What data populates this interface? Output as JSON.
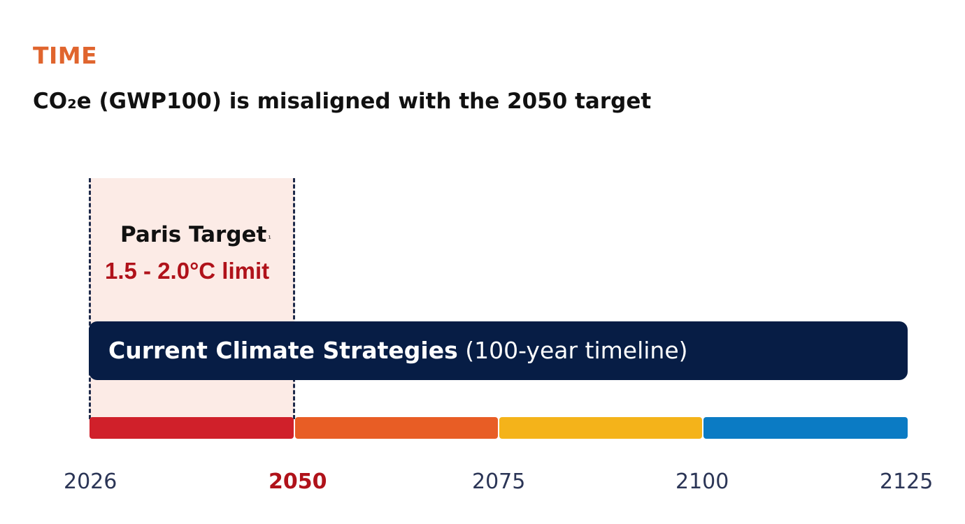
{
  "section_label": "TIME",
  "headline": "CO₂e (GWP100) is misaligned with the 2050 target",
  "paris": {
    "title": "Paris Target",
    "footnote_marker": "¹",
    "limit": "1.5 - 2.0°C limit"
  },
  "strategy_bar": {
    "bold_text": "Current Climate Strategies",
    "normal_text": " (100-year timeline)"
  },
  "timeline": {
    "ticks": [
      {
        "label": "2026",
        "highlight": false
      },
      {
        "label": "2050",
        "highlight": true
      },
      {
        "label": "2075",
        "highlight": false
      },
      {
        "label": "2100",
        "highlight": false
      },
      {
        "label": "2125",
        "highlight": false
      }
    ],
    "segments": [
      {
        "from": "2026",
        "to": "2050",
        "color": "#d0202a"
      },
      {
        "from": "2050",
        "to": "2075",
        "color": "#e85d25"
      },
      {
        "from": "2075",
        "to": "2100",
        "color": "#f4b31a"
      },
      {
        "from": "2100",
        "to": "2125",
        "color": "#0b7bc4"
      }
    ]
  },
  "colors": {
    "accent_orange": "#e0652e",
    "target_red": "#b0121a",
    "navy": "#071d45",
    "paris_shade": "#fcebe6",
    "axis_text": "#2b3556"
  }
}
